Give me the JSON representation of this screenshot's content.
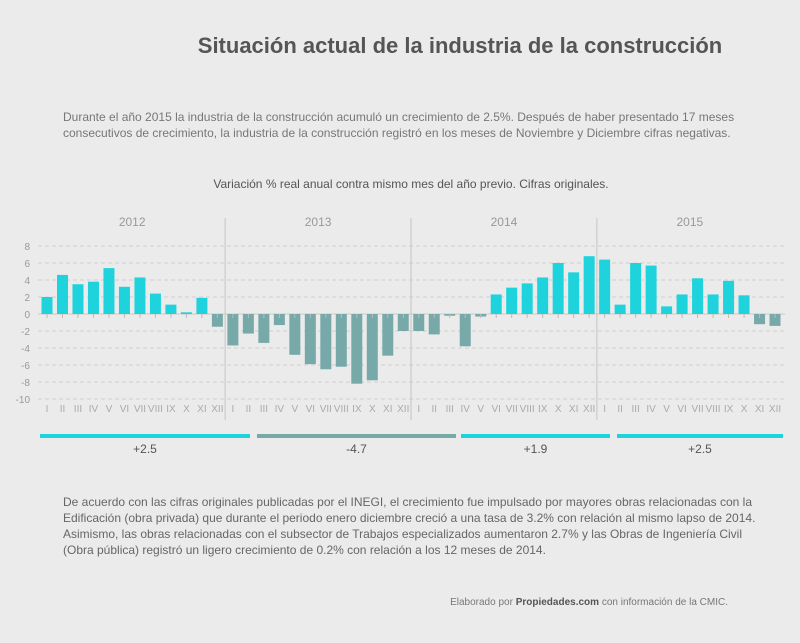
{
  "title": "Situación actual de la industria de la construcción",
  "intro": "Durante el año 2015 la industria de la construcción acumuló un crecimiento de 2.5%. Después de haber presentado 17 meses consecutivos de crecimiento, la industria de la construcción registró en los meses de Noviembre y Diciembre cifras negativas.",
  "footer": "De acuerdo con las cifras originales publicadas por el INEGI, el crecimiento fue impulsado por mayores obras relacionadas con la Edificación (obra privada) que durante el periodo enero diciembre creció a una tasa de 3.2% con relación al mismo lapso de 2014. Asimismo, las obras relacionadas con el subsector de Trabajos especializados aumentaron 2.7% y las Obras de Ingeniería Civil (Obra pública) registró un ligero crecimiento de 0.2% con relación a los 12 meses de 2014.",
  "credit": {
    "prefix": "Elaborado por ",
    "brand": "Propiedades.com",
    "suffix": " con información de la CMIC."
  },
  "chart_data": {
    "type": "bar",
    "title": "Variación % real anual contra mismo mes del año previo. Cifras originales.",
    "ylim": [
      -10,
      8
    ],
    "yticks": [
      8,
      6,
      4,
      2,
      0,
      -2,
      -4,
      -6,
      -8,
      -10
    ],
    "grid": true,
    "colors": {
      "positive": "#1fd3dc",
      "negative": "#77a9a9"
    },
    "months": [
      "I",
      "II",
      "III",
      "IV",
      "V",
      "VI",
      "VII",
      "VIII",
      "IX",
      "X",
      "XI",
      "XII"
    ],
    "years": [
      {
        "year": "2012",
        "annual": "+2.5",
        "values": [
          2.0,
          4.6,
          3.5,
          3.8,
          5.4,
          3.2,
          4.3,
          2.4,
          1.1,
          0.2,
          1.9,
          -1.5
        ]
      },
      {
        "year": "2013",
        "annual": "-4.7",
        "values": [
          -3.7,
          -2.3,
          -3.4,
          -1.3,
          -4.8,
          -5.9,
          -6.5,
          -6.2,
          -8.2,
          -7.8,
          -4.9,
          -2.0
        ]
      },
      {
        "year": "2014",
        "annual": "+1.9",
        "values": [
          -2.0,
          -2.4,
          -0.2,
          -3.8,
          -0.3,
          2.3,
          3.1,
          3.6,
          4.3,
          6.0,
          4.9,
          6.8
        ]
      },
      {
        "year": "2015",
        "annual": "+2.5",
        "values": [
          6.4,
          1.1,
          6.0,
          5.7,
          0.9,
          2.3,
          4.2,
          2.3,
          3.9,
          2.2,
          -1.2,
          -1.4
        ]
      }
    ]
  }
}
